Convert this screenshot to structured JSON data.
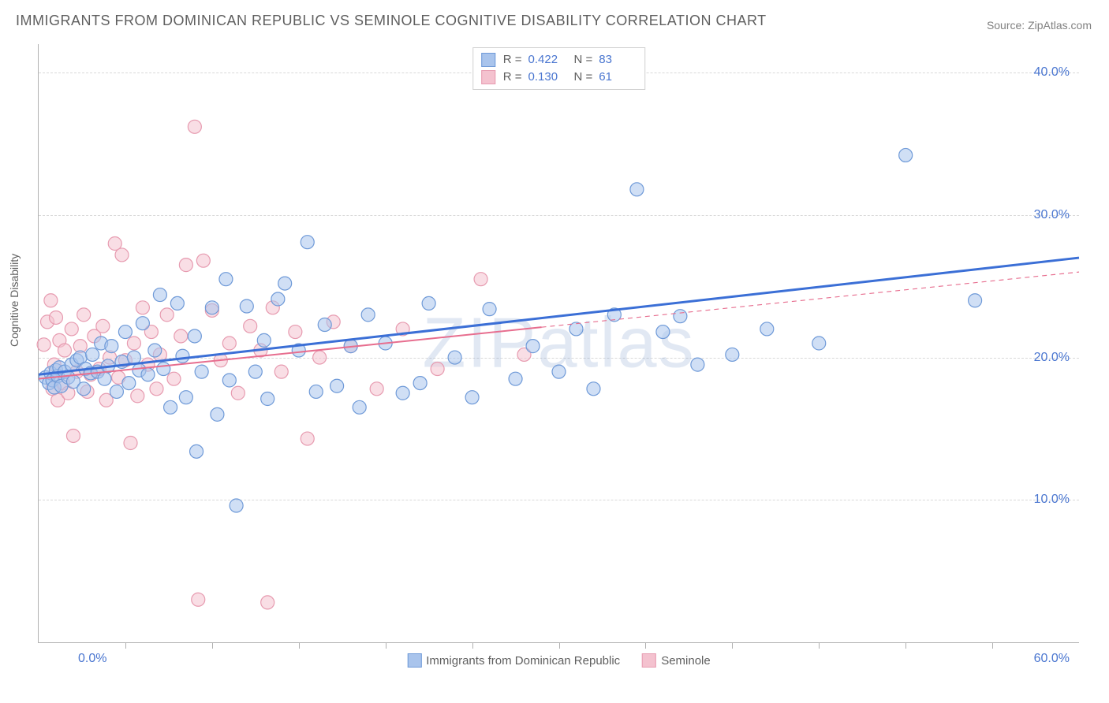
{
  "title": "IMMIGRANTS FROM DOMINICAN REPUBLIC VS SEMINOLE COGNITIVE DISABILITY CORRELATION CHART",
  "source": "Source: ZipAtlas.com",
  "watermark": "ZIPatlas",
  "ylabel": "Cognitive Disability",
  "chart": {
    "type": "scatter",
    "xlim": [
      0,
      60
    ],
    "ylim": [
      0,
      42
    ],
    "xticks_minor": [
      5,
      10,
      15,
      20,
      25,
      30,
      35,
      40,
      45,
      50,
      55
    ],
    "xaxis_label_min": "0.0%",
    "xaxis_label_max": "60.0%",
    "yticks": [
      {
        "v": 10,
        "label": "10.0%"
      },
      {
        "v": 20,
        "label": "20.0%"
      },
      {
        "v": 30,
        "label": "30.0%"
      },
      {
        "v": 40,
        "label": "40.0%"
      }
    ],
    "background_color": "#ffffff",
    "grid_color": "#d8d8d8",
    "marker_radius": 8.5,
    "marker_opacity": 0.55,
    "series": [
      {
        "id": "dominican",
        "label": "Immigrants from Dominican Republic",
        "fill": "#a9c4ec",
        "stroke": "#6f9ad8",
        "trend_color": "#3b6fd6",
        "trend_width": 3,
        "trend_dash": "none",
        "R": "0.422",
        "N": "83",
        "trend": {
          "x1": 0,
          "y1": 18.8,
          "x2": 60,
          "y2": 27.0
        },
        "points": [
          [
            0.4,
            18.6
          ],
          [
            0.6,
            18.2
          ],
          [
            0.7,
            18.9
          ],
          [
            0.8,
            18.4
          ],
          [
            0.9,
            17.9
          ],
          [
            1.0,
            19.1
          ],
          [
            1.1,
            18.7
          ],
          [
            1.2,
            19.3
          ],
          [
            1.3,
            18.0
          ],
          [
            1.5,
            19.0
          ],
          [
            1.7,
            18.6
          ],
          [
            1.9,
            19.5
          ],
          [
            2.0,
            18.3
          ],
          [
            2.2,
            19.8
          ],
          [
            2.4,
            20.0
          ],
          [
            2.6,
            17.8
          ],
          [
            2.7,
            19.2
          ],
          [
            3.0,
            18.9
          ],
          [
            3.1,
            20.2
          ],
          [
            3.4,
            19.0
          ],
          [
            3.6,
            21.0
          ],
          [
            3.8,
            18.5
          ],
          [
            4.0,
            19.4
          ],
          [
            4.2,
            20.8
          ],
          [
            4.5,
            17.6
          ],
          [
            4.8,
            19.7
          ],
          [
            5.0,
            21.8
          ],
          [
            5.2,
            18.2
          ],
          [
            5.5,
            20.0
          ],
          [
            5.8,
            19.1
          ],
          [
            6.0,
            22.4
          ],
          [
            6.3,
            18.8
          ],
          [
            6.7,
            20.5
          ],
          [
            7.0,
            24.4
          ],
          [
            7.2,
            19.2
          ],
          [
            7.6,
            16.5
          ],
          [
            8.0,
            23.8
          ],
          [
            8.3,
            20.1
          ],
          [
            8.5,
            17.2
          ],
          [
            9.0,
            21.5
          ],
          [
            9.1,
            13.4
          ],
          [
            9.4,
            19.0
          ],
          [
            10.0,
            23.5
          ],
          [
            10.3,
            16.0
          ],
          [
            10.8,
            25.5
          ],
          [
            11.0,
            18.4
          ],
          [
            11.4,
            9.6
          ],
          [
            12.0,
            23.6
          ],
          [
            12.5,
            19.0
          ],
          [
            13.0,
            21.2
          ],
          [
            13.2,
            17.1
          ],
          [
            13.8,
            24.1
          ],
          [
            14.2,
            25.2
          ],
          [
            15.0,
            20.5
          ],
          [
            15.5,
            28.1
          ],
          [
            16.0,
            17.6
          ],
          [
            16.5,
            22.3
          ],
          [
            17.2,
            18.0
          ],
          [
            18.0,
            20.8
          ],
          [
            18.5,
            16.5
          ],
          [
            19.0,
            23.0
          ],
          [
            20.0,
            21.0
          ],
          [
            21.0,
            17.5
          ],
          [
            22.0,
            18.2
          ],
          [
            22.5,
            23.8
          ],
          [
            24.0,
            20.0
          ],
          [
            25.0,
            17.2
          ],
          [
            26.0,
            23.4
          ],
          [
            27.5,
            18.5
          ],
          [
            28.5,
            20.8
          ],
          [
            30.0,
            19.0
          ],
          [
            31.0,
            22.0
          ],
          [
            32.0,
            17.8
          ],
          [
            33.2,
            23.0
          ],
          [
            34.5,
            31.8
          ],
          [
            36.0,
            21.8
          ],
          [
            37.0,
            22.9
          ],
          [
            38.0,
            19.5
          ],
          [
            40.0,
            20.2
          ],
          [
            42.0,
            22.0
          ],
          [
            45.0,
            21.0
          ],
          [
            50.0,
            34.2
          ],
          [
            54.0,
            24.0
          ]
        ]
      },
      {
        "id": "seminole",
        "label": "Seminole",
        "fill": "#f4c2cf",
        "stroke": "#e79bb0",
        "trend_color": "#e76e8f",
        "trend_width": 2,
        "trend_dash": "none",
        "trend_dash_after": 29,
        "R": "0.130",
        "N": "61",
        "trend": {
          "x1": 0,
          "y1": 18.5,
          "x2": 60,
          "y2": 26.0
        },
        "points": [
          [
            0.3,
            20.9
          ],
          [
            0.5,
            22.5
          ],
          [
            0.7,
            24.0
          ],
          [
            0.8,
            17.8
          ],
          [
            0.9,
            19.5
          ],
          [
            1.0,
            22.8
          ],
          [
            1.1,
            17.0
          ],
          [
            1.2,
            21.2
          ],
          [
            1.4,
            18.2
          ],
          [
            1.5,
            20.5
          ],
          [
            1.7,
            17.5
          ],
          [
            1.9,
            22.0
          ],
          [
            2.0,
            14.5
          ],
          [
            2.2,
            19.0
          ],
          [
            2.4,
            20.8
          ],
          [
            2.6,
            23.0
          ],
          [
            2.8,
            17.6
          ],
          [
            3.0,
            18.8
          ],
          [
            3.2,
            21.5
          ],
          [
            3.5,
            19.2
          ],
          [
            3.7,
            22.2
          ],
          [
            3.9,
            17.0
          ],
          [
            4.1,
            20.0
          ],
          [
            4.4,
            28.0
          ],
          [
            4.6,
            18.6
          ],
          [
            4.8,
            27.2
          ],
          [
            5.0,
            19.8
          ],
          [
            5.3,
            14.0
          ],
          [
            5.5,
            21.0
          ],
          [
            5.7,
            17.3
          ],
          [
            6.0,
            23.5
          ],
          [
            6.3,
            19.5
          ],
          [
            6.5,
            21.8
          ],
          [
            6.8,
            17.8
          ],
          [
            7.0,
            20.2
          ],
          [
            7.4,
            23.0
          ],
          [
            7.8,
            18.5
          ],
          [
            8.2,
            21.5
          ],
          [
            8.5,
            26.5
          ],
          [
            9.0,
            36.2
          ],
          [
            9.2,
            3.0
          ],
          [
            9.5,
            26.8
          ],
          [
            10.0,
            23.3
          ],
          [
            10.5,
            19.8
          ],
          [
            11.0,
            21.0
          ],
          [
            11.5,
            17.5
          ],
          [
            12.2,
            22.2
          ],
          [
            12.8,
            20.5
          ],
          [
            13.2,
            2.8
          ],
          [
            13.5,
            23.5
          ],
          [
            14.0,
            19.0
          ],
          [
            14.8,
            21.8
          ],
          [
            15.5,
            14.3
          ],
          [
            16.2,
            20.0
          ],
          [
            17.0,
            22.5
          ],
          [
            18.0,
            20.8
          ],
          [
            19.5,
            17.8
          ],
          [
            21.0,
            22.0
          ],
          [
            23.0,
            19.2
          ],
          [
            25.5,
            25.5
          ],
          [
            28.0,
            20.2
          ]
        ]
      }
    ]
  },
  "colors": {
    "title": "#5f5f5f",
    "axis_value": "#4a76d0",
    "axis_line": "#b0b0b0"
  }
}
